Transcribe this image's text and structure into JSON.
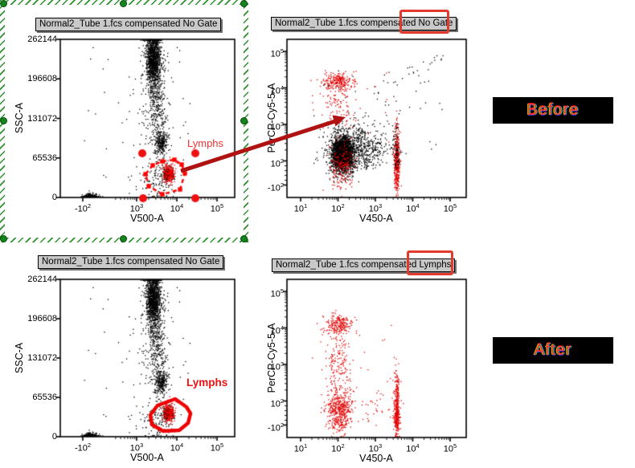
{
  "annotations": {
    "before_label": "Before",
    "after_label": "After",
    "banner_bg": "#000000",
    "banner_text_color": "#ff2e2e",
    "highlight_box_color": "#e23b2e",
    "arrow_color": "#b01212",
    "selection_color": "#228b22",
    "dot_colors": {
      "black": "#000000",
      "red": "#e00000"
    },
    "highlights": [
      {
        "around_text": "No Gate",
        "panel": "top-right"
      },
      {
        "around_text": "Lymphs",
        "panel": "bottom-right"
      }
    ]
  },
  "chart_data": [
    {
      "id": "top-left",
      "type": "scatter",
      "title": "Normal2_Tube 1.fcs compensated No Gate",
      "xlabel": "V500-A",
      "ylabel": "SSC-A",
      "x_scale": "biexponential",
      "y_scale": "linear",
      "xlim": [
        -200,
        262144
      ],
      "ylim": [
        0,
        262144
      ],
      "x_ticks": [
        {
          "label": "-10^2",
          "v": -100
        },
        {
          "label": "10^3",
          "v": 1000
        },
        {
          "label": "10^4",
          "v": 10000
        },
        {
          "label": "10^5",
          "v": 100000
        }
      ],
      "y_ticks": [
        {
          "label": "262144",
          "v": 262144
        },
        {
          "label": "196608",
          "v": 196608
        },
        {
          "label": "131072",
          "v": 131072
        },
        {
          "label": "65536",
          "v": 65536
        },
        {
          "label": "0",
          "v": 0
        }
      ],
      "gate": {
        "label": "Lymphs",
        "style": "dashed-editing",
        "color": "#ff0000",
        "vertices": [
          [
            127,
            152
          ],
          [
            142,
            150
          ],
          [
            151,
            156
          ],
          [
            155,
            167
          ],
          [
            149,
            187
          ],
          [
            127,
            193
          ],
          [
            110,
            183
          ],
          [
            106,
            168
          ],
          [
            115,
            157
          ]
        ],
        "handles": [
          [
            102,
            142
          ],
          [
            168,
            142
          ],
          [
            103,
            198
          ],
          [
            168,
            198
          ]
        ]
      },
      "clusters": [
        {
          "n": 1150,
          "color": "black",
          "x": {
            "d": "log",
            "mu": 3.42,
            "s": 0.085
          },
          "y": {
            "d": "lin",
            "mu": 232000,
            "s": 23000
          }
        },
        {
          "n": 180,
          "color": "black",
          "x": {
            "d": "log",
            "mu": 3.42,
            "s": 0.17
          },
          "y": {
            "d": "lin",
            "mu": 205000,
            "s": 45000
          }
        },
        {
          "n": 260,
          "color": "black",
          "x": {
            "d": "log",
            "mu": 3.5,
            "s": 0.13
          },
          "y": {
            "d": "lin",
            "mu": 150000,
            "s": 33000
          }
        },
        {
          "n": 240,
          "color": "black",
          "x": {
            "d": "log",
            "mu": 3.62,
            "s": 0.08
          },
          "y": {
            "d": "lin",
            "mu": 91000,
            "s": 10000
          }
        },
        {
          "n": 420,
          "color": "red",
          "x": {
            "d": "log",
            "mu": 3.8,
            "s": 0.07
          },
          "y": {
            "d": "lin",
            "mu": 39000,
            "s": 7000
          }
        },
        {
          "n": 140,
          "color": "black",
          "x": {
            "d": "log",
            "mu": 3.55,
            "s": 0.22
          },
          "y": {
            "d": "lin",
            "mu": 34000,
            "s": 21000
          }
        },
        {
          "n": 170,
          "color": "black",
          "x": {
            "d": "lin",
            "mu": 10,
            "s": 55
          },
          "y": {
            "d": "lin",
            "mu": 1500,
            "s": 2800
          }
        },
        {
          "n": 50,
          "color": "black",
          "x": {
            "d": "ulog",
            "min": 2.85,
            "max": 4.35
          },
          "y": {
            "d": "ulin",
            "min": 4000,
            "max": 258000
          }
        },
        {
          "n": 22,
          "color": "black",
          "x": {
            "d": "ulin",
            "min": -80,
            "max": 700
          },
          "y": {
            "d": "ulin",
            "min": 4000,
            "max": 250000
          }
        }
      ]
    },
    {
      "id": "top-right",
      "type": "scatter",
      "title": "Normal2_Tube 1.fcs compensated No Gate",
      "title_highlight": "No Gate",
      "xlabel": "V450-A",
      "ylabel": "PerCP-Cy5-5-A",
      "x_scale": "log",
      "y_scale": "biexponential",
      "x_ticks": [
        {
          "label": "10^1",
          "v": 10
        },
        {
          "label": "10^2",
          "v": 100
        },
        {
          "label": "10^3",
          "v": 1000
        },
        {
          "label": "10^4",
          "v": 10000
        },
        {
          "label": "10^5",
          "v": 100000
        }
      ],
      "y_ticks": [
        {
          "label": "10^5",
          "v": 100000
        },
        {
          "label": "10^4",
          "v": 10000
        },
        {
          "label": "10^3",
          "v": 1000
        },
        {
          "label": "10^2",
          "v": 100
        },
        {
          "label": "-10^2",
          "v": -100
        }
      ],
      "clusters": [
        {
          "n": 2100,
          "color": "black",
          "x": {
            "d": "log",
            "mu": 2.12,
            "s": 0.13
          },
          "y": {
            "d": "log",
            "mu": 2.22,
            "s": 0.2
          }
        },
        {
          "n": 320,
          "color": "black",
          "x": {
            "d": "log",
            "mu": 2.1,
            "s": 0.16
          },
          "y": {
            "d": "lin",
            "mu": 55,
            "s": 55
          }
        },
        {
          "n": 560,
          "color": "black",
          "x": {
            "d": "log",
            "mu": 2.25,
            "s": 0.3
          },
          "y": {
            "d": "log",
            "mu": 2.35,
            "s": 0.35
          }
        },
        {
          "n": 260,
          "color": "black",
          "x": {
            "d": "log",
            "mu": 2.85,
            "s": 0.25
          },
          "y": {
            "d": "log",
            "mu": 2.3,
            "s": 0.28
          }
        },
        {
          "n": 240,
          "color": "red",
          "x": {
            "d": "log",
            "mu": 2.02,
            "s": 0.22
          },
          "y": {
            "d": "log",
            "mu": 4.18,
            "s": 0.11
          }
        },
        {
          "n": 90,
          "color": "red",
          "x": {
            "d": "log",
            "mu": 2.0,
            "s": 0.25
          },
          "y": {
            "d": "log",
            "mu": 3.55,
            "s": 0.3
          }
        },
        {
          "n": 280,
          "color": "red",
          "x": {
            "d": "log",
            "mu": 3.58,
            "s": 0.035
          },
          "y": {
            "d": "log",
            "mu": 2.2,
            "s": 0.4
          }
        },
        {
          "n": 150,
          "color": "red",
          "x": {
            "d": "log",
            "mu": 3.58,
            "s": 0.035
          },
          "y": {
            "d": "lin",
            "mu": -30,
            "s": 75
          }
        },
        {
          "n": 70,
          "color": "black",
          "x": {
            "d": "log",
            "mu": 3.56,
            "s": 0.06
          },
          "y": {
            "d": "log",
            "mu": 2.35,
            "s": 0.35
          }
        },
        {
          "n": 110,
          "color": "red",
          "x": {
            "d": "log",
            "mu": 2.1,
            "s": 0.16
          },
          "y": {
            "d": "log",
            "mu": 2.05,
            "s": 0.28
          }
        },
        {
          "n": 90,
          "color": "red",
          "x": {
            "d": "log",
            "mu": 2.1,
            "s": 0.18
          },
          "y": {
            "d": "lin",
            "mu": -20,
            "s": 60
          }
        },
        {
          "n": 26,
          "color": "black",
          "x": {
            "d": "ulog",
            "min": 2.9,
            "max": 4.9
          },
          "y": {
            "d": "fx",
            "a": 2.4,
            "b": 0.52,
            "noise": 0.09
          }
        },
        {
          "n": 55,
          "color": "black",
          "x": {
            "d": "ulog",
            "min": 1.5,
            "max": 4.8
          },
          "y": {
            "d": "ulog",
            "min": 1.9,
            "max": 4.6
          }
        },
        {
          "n": 20,
          "color": "red",
          "x": {
            "d": "ulog",
            "min": 1.3,
            "max": 3.4
          },
          "y": {
            "d": "ulog",
            "min": 2.5,
            "max": 4.5
          }
        }
      ]
    },
    {
      "id": "bottom-left",
      "type": "scatter",
      "title": "Normal2_Tube 1.fcs compensated No Gate",
      "xlabel": "V500-A",
      "ylabel": "SSC-A",
      "x_scale": "biexponential",
      "y_scale": "linear",
      "x_ticks": [
        {
          "label": "-10^2",
          "v": -100
        },
        {
          "label": "10^3",
          "v": 1000
        },
        {
          "label": "10^4",
          "v": 10000
        },
        {
          "label": "10^5",
          "v": 100000
        }
      ],
      "y_ticks": [
        {
          "label": "262144",
          "v": 262144
        },
        {
          "label": "196608",
          "v": 196608
        },
        {
          "label": "131072",
          "v": 131072
        },
        {
          "label": "65536",
          "v": 65536
        },
        {
          "label": "0",
          "v": 0
        }
      ],
      "gate": {
        "label": "Lymphs",
        "style": "solid",
        "color": "#ee0000",
        "vertices": [
          [
            143,
            149
          ],
          [
            157,
            159
          ],
          [
            162,
            167
          ],
          [
            159,
            179
          ],
          [
            148,
            188
          ],
          [
            128,
            189
          ],
          [
            114,
            181
          ],
          [
            112,
            169
          ],
          [
            121,
            157
          ]
        ]
      },
      "clusters_same_as": 0
    },
    {
      "id": "bottom-right",
      "type": "scatter",
      "title": "Normal2_Tube 1.fcs compensated Lymphs",
      "title_highlight": "Lymphs",
      "xlabel": "V450-A",
      "ylabel": "PerCP-Cy5-5-A",
      "x_scale": "log",
      "y_scale": "biexponential",
      "x_ticks": [
        {
          "label": "10^1",
          "v": 10
        },
        {
          "label": "10^2",
          "v": 100
        },
        {
          "label": "10^3",
          "v": 1000
        },
        {
          "label": "10^4",
          "v": 10000
        },
        {
          "label": "10^5",
          "v": 100000
        }
      ],
      "y_ticks": [
        {
          "label": "10^5",
          "v": 100000
        },
        {
          "label": "10^4",
          "v": 10000
        },
        {
          "label": "10^3",
          "v": 1000
        },
        {
          "label": "10^2",
          "v": 100
        },
        {
          "label": "-10^2",
          "v": -100
        }
      ],
      "clusters": [
        {
          "n": 200,
          "color": "red",
          "x": {
            "d": "log",
            "mu": 1.98,
            "s": 0.2
          },
          "y": {
            "d": "log",
            "mu": 4.1,
            "s": 0.14
          }
        },
        {
          "n": 160,
          "color": "red",
          "x": {
            "d": "log",
            "mu": 2.0,
            "s": 0.18
          },
          "y": {
            "d": "log",
            "mu": 3.1,
            "s": 0.45
          }
        },
        {
          "n": 130,
          "color": "red",
          "x": {
            "d": "log",
            "mu": 2.05,
            "s": 0.16
          },
          "y": {
            "d": "log",
            "mu": 1.95,
            "s": 0.25
          }
        },
        {
          "n": 330,
          "color": "red",
          "x": {
            "d": "log",
            "mu": 2.05,
            "s": 0.17
          },
          "y": {
            "d": "lin",
            "mu": -15,
            "s": 70
          }
        },
        {
          "n": 130,
          "color": "red",
          "x": {
            "d": "log",
            "mu": 3.58,
            "s": 0.04
          },
          "y": {
            "d": "log",
            "mu": 2.2,
            "s": 0.35
          }
        },
        {
          "n": 250,
          "color": "red",
          "x": {
            "d": "log",
            "mu": 3.58,
            "s": 0.04
          },
          "y": {
            "d": "lin",
            "mu": -40,
            "s": 75
          }
        },
        {
          "n": 30,
          "color": "red",
          "x": {
            "d": "log",
            "mu": 2.95,
            "s": 0.22
          },
          "y": {
            "d": "lin",
            "mu": 30,
            "s": 60
          }
        },
        {
          "n": 25,
          "color": "red",
          "x": {
            "d": "ulog",
            "min": 1.3,
            "max": 3.9
          },
          "y": {
            "d": "ulog",
            "min": 1.8,
            "max": 4.4
          }
        }
      ]
    }
  ]
}
